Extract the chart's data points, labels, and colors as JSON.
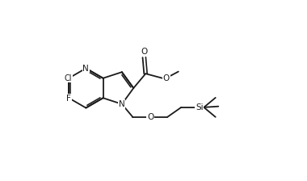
{
  "bg_color": "#ffffff",
  "line_color": "#1a1a1a",
  "line_width": 1.3,
  "font_size": 7.5,
  "fig_width": 3.8,
  "fig_height": 2.24,
  "dpi": 100,
  "xlim": [
    -1,
    10
  ],
  "ylim": [
    -0.5,
    7
  ]
}
